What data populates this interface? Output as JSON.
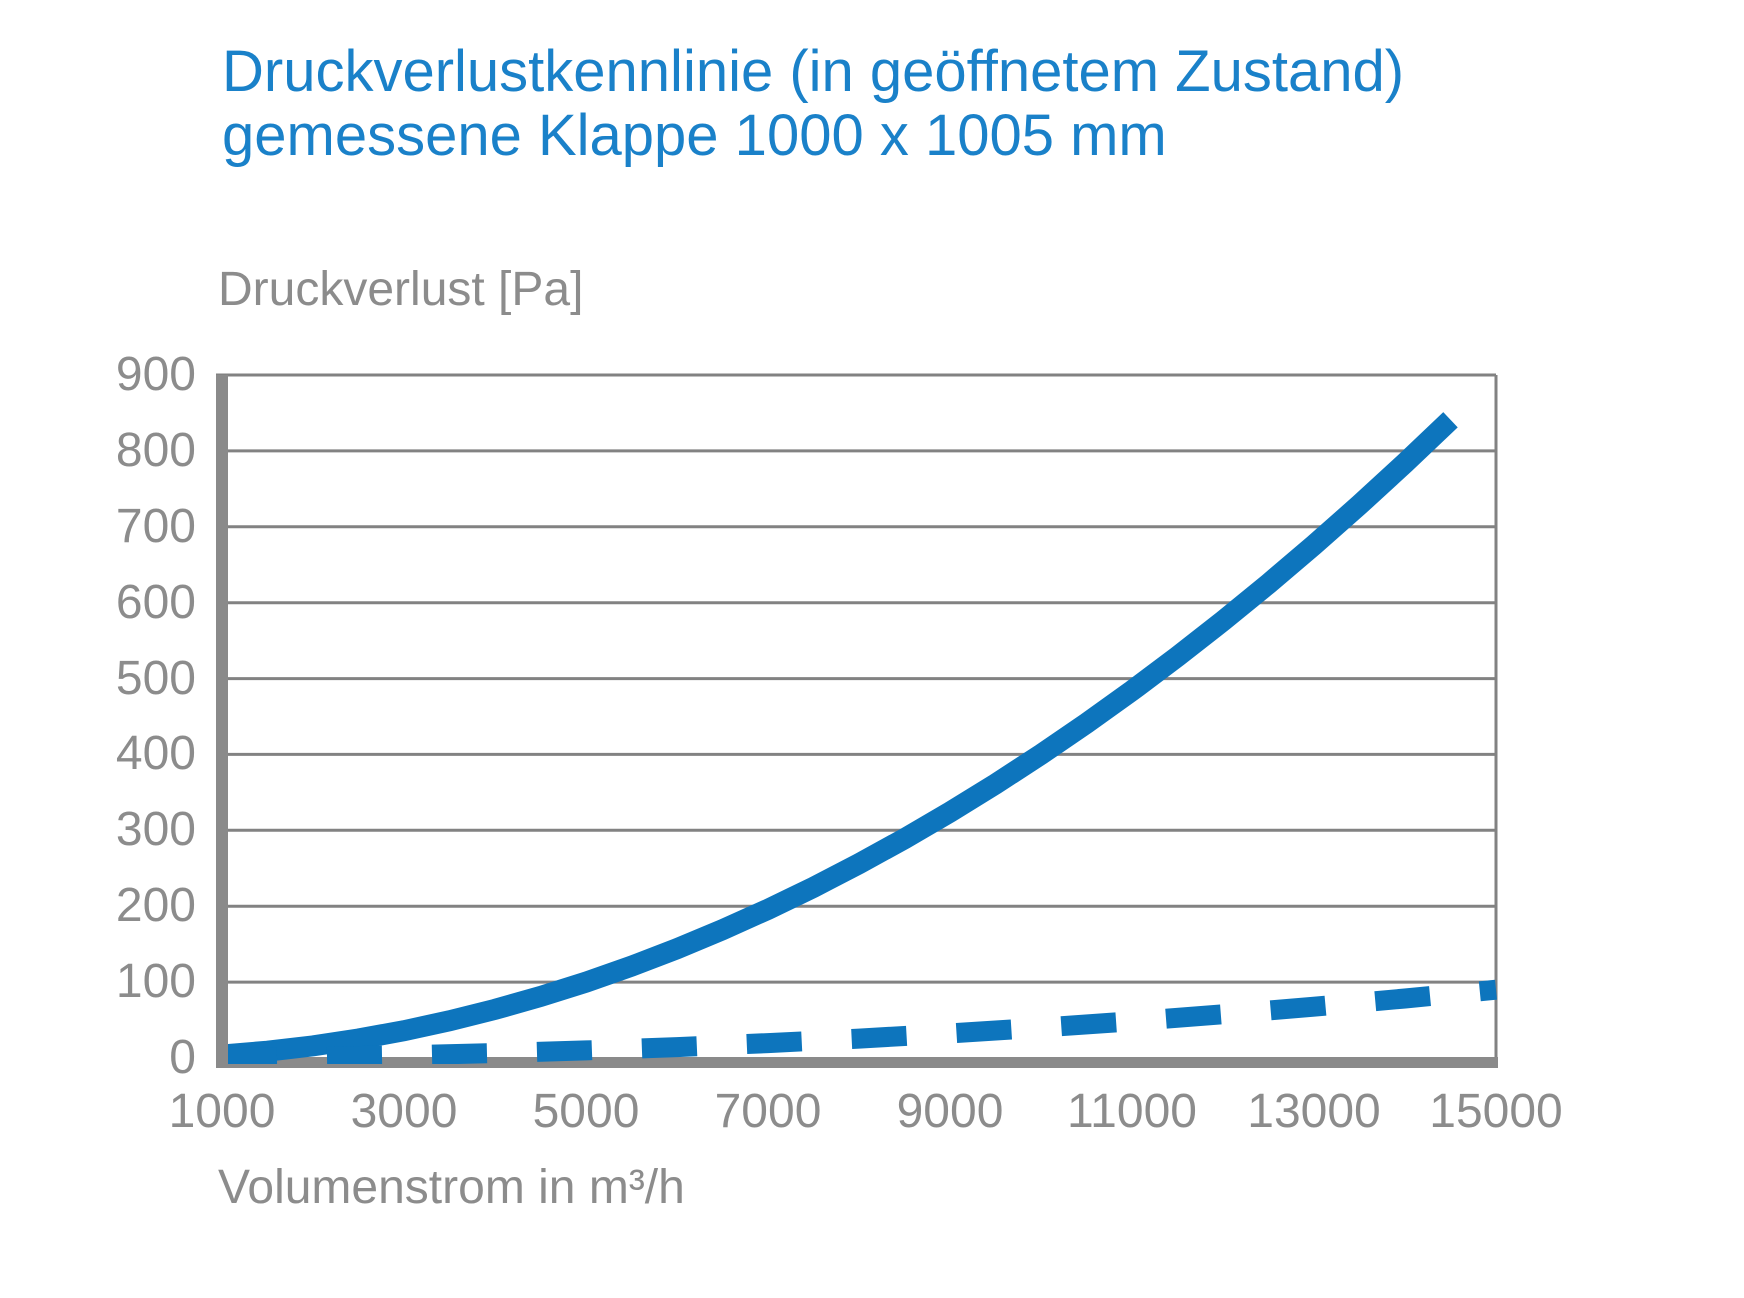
{
  "title": {
    "line1": "Druckverlustkennlinie (in geöffnetem Zustand)",
    "line2": "gemessene Klappe 1000 x 1005 mm"
  },
  "colors": {
    "title_blue": "#1a81c9",
    "line_blue": "#0d75bd",
    "text_gray": "#8c8c8c",
    "axis_gray": "#8a8a8a",
    "grid_gray": "#828282",
    "background": "#ffffff"
  },
  "chart_data": {
    "type": "line",
    "title": "Druckverlustkennlinie (in geöffnetem Zustand) gemessene Klappe 1000 x 1005 mm",
    "xlabel": "Volumenstrom in m³/h",
    "ylabel": "Druckverlust [Pa]",
    "xlim": [
      1000,
      15000
    ],
    "ylim": [
      0,
      900
    ],
    "x_ticks": [
      1000,
      3000,
      5000,
      7000,
      9000,
      11000,
      13000,
      15000
    ],
    "y_ticks": [
      0,
      100,
      200,
      300,
      400,
      500,
      600,
      700,
      800,
      900
    ],
    "grid": "horizontal",
    "legend_position": "none",
    "series": [
      {
        "name": "solid-curve",
        "style": "solid",
        "x": [
          1000,
          1500,
          2000,
          2500,
          3000,
          3500,
          4000,
          4500,
          5000,
          5500,
          6000,
          6500,
          7000,
          7500,
          8000,
          8500,
          9000,
          9500,
          10000,
          10500,
          11000,
          11500,
          12000,
          12500,
          13000,
          13500,
          14000,
          14500
        ],
        "y": [
          4,
          9,
          16,
          25,
          36,
          49,
          64,
          81,
          100,
          121,
          144,
          169,
          196,
          225,
          256,
          289,
          324,
          361,
          400,
          441,
          484,
          529,
          576,
          625,
          676,
          729,
          784,
          841
        ]
      },
      {
        "name": "dashed-curve",
        "style": "dashed",
        "x": [
          1000,
          2000,
          3000,
          4000,
          5000,
          6000,
          7000,
          8000,
          9000,
          10000,
          11000,
          12000,
          13000,
          14000,
          15000
        ],
        "y": [
          0.4,
          1.6,
          3.6,
          6.4,
          10,
          14.4,
          19.6,
          25.6,
          32.4,
          40,
          48.4,
          57.6,
          67.6,
          78.4,
          90
        ]
      }
    ]
  }
}
